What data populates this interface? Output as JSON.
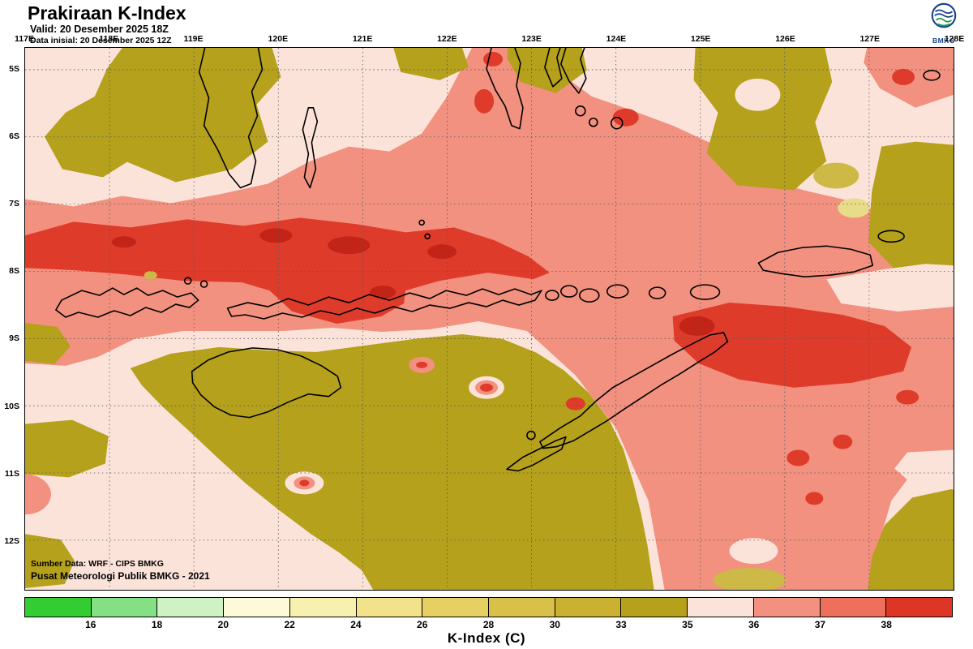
{
  "header": {
    "title": "Prakiraan K-Index",
    "valid": "Valid: 20 Desember 2025 18Z",
    "init": "Data inisial: 20 Desember 2025 12Z",
    "logo_text": "BMKG"
  },
  "axes": {
    "lon_labels": [
      "117E",
      "118E",
      "119E",
      "120E",
      "121E",
      "122E",
      "123E",
      "124E",
      "125E",
      "126E",
      "127E",
      "128E"
    ],
    "lat_labels": [
      "5S",
      "6S",
      "7S",
      "8S",
      "9S",
      "10S",
      "11S",
      "12S"
    ]
  },
  "map": {
    "source_line1": "Sumber Data: WRF - CIPS BMKG",
    "source_line2": "Pusat Meteorologi Publik BMKG - 2021"
  },
  "legend": {
    "title": "K-Index (C)",
    "ticks": [
      "16",
      "18",
      "20",
      "22",
      "24",
      "26",
      "28",
      "30",
      "33",
      "35",
      "36",
      "37",
      "38"
    ],
    "colors": [
      "#33CC33",
      "#85E085",
      "#CFF2C4",
      "#FCFAD8",
      "#F8F0AE",
      "#F2E28A",
      "#E6D064",
      "#D9C048",
      "#CBB132",
      "#B5A11B",
      "#FBE3DA",
      "#F2917F",
      "#ED6F5C",
      "#DD3626"
    ]
  },
  "palette": {
    "pale_pink": "#FBE3DA",
    "salmon": "#F2917F",
    "red": "#DF3B2B",
    "deep_red": "#C22418",
    "olive": "#B5A11B",
    "gold": "#CDB945",
    "pale_yellow": "#E9DC88",
    "logo_blue": "#16418A",
    "logo_green": "#1D9E4F"
  },
  "chart_data": {
    "type": "heatmap",
    "title": "Prakiraan K-Index",
    "colorbar_label": "K-Index (C)",
    "colorbar_ticks": [
      16,
      18,
      20,
      22,
      24,
      26,
      28,
      30,
      33,
      35,
      36,
      37,
      38
    ],
    "lon_extent": [
      "117E",
      "128E"
    ],
    "lat_extent": [
      "5S",
      "12S"
    ],
    "legend_position": "bottom"
  }
}
